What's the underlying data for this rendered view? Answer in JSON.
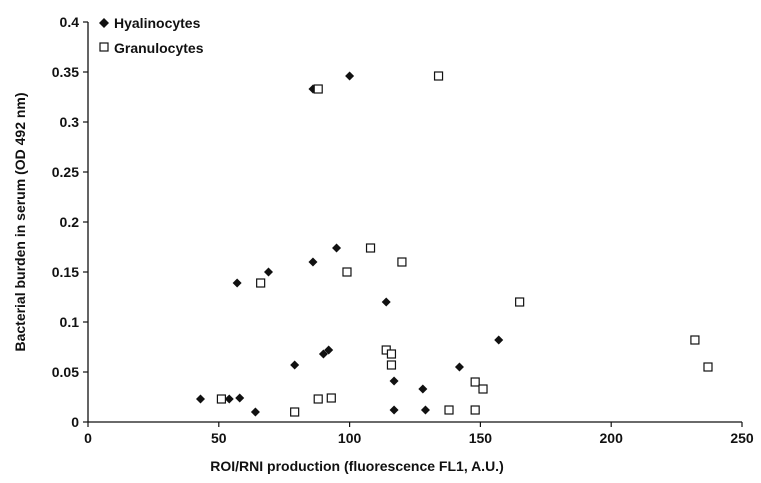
{
  "chart_data": {
    "type": "scatter",
    "title": "",
    "xlabel": "ROI/RNI production (fluorescence FL1, A.U.)",
    "ylabel": "Bacterial burden in serum (OD 492 nm)",
    "xlim": [
      0,
      250
    ],
    "ylim": [
      0,
      0.4
    ],
    "xticks": [
      0,
      50,
      100,
      150,
      200,
      250
    ],
    "yticks": [
      0,
      0.05,
      0.1,
      0.15,
      0.2,
      0.25,
      0.3,
      0.35,
      0.4
    ],
    "xtick_labels": [
      "0",
      "50",
      "100",
      "150",
      "200",
      "250"
    ],
    "ytick_labels": [
      "0",
      "0.05",
      "0.1",
      "0.15",
      "0.2",
      "0.25",
      "0.3",
      "0.35",
      "0.4"
    ],
    "grid": false,
    "legend_position": "top-left",
    "series": [
      {
        "name": "Hyalinocytes",
        "marker": "filled-diamond",
        "color": "#111111",
        "points": [
          {
            "x": 100,
            "y": 0.346
          },
          {
            "x": 86,
            "y": 0.333
          },
          {
            "x": 95,
            "y": 0.174
          },
          {
            "x": 86,
            "y": 0.16
          },
          {
            "x": 69,
            "y": 0.15
          },
          {
            "x": 57,
            "y": 0.139
          },
          {
            "x": 114,
            "y": 0.12
          },
          {
            "x": 157,
            "y": 0.082
          },
          {
            "x": 92,
            "y": 0.072
          },
          {
            "x": 90,
            "y": 0.068
          },
          {
            "x": 79,
            "y": 0.057
          },
          {
            "x": 142,
            "y": 0.055
          },
          {
            "x": 117,
            "y": 0.041
          },
          {
            "x": 128,
            "y": 0.033
          },
          {
            "x": 43,
            "y": 0.023
          },
          {
            "x": 54,
            "y": 0.023
          },
          {
            "x": 58,
            "y": 0.024
          },
          {
            "x": 64,
            "y": 0.01
          },
          {
            "x": 117,
            "y": 0.012
          },
          {
            "x": 129,
            "y": 0.012
          }
        ]
      },
      {
        "name": "Granulocytes",
        "marker": "open-square",
        "color": "#111111",
        "points": [
          {
            "x": 134,
            "y": 0.346
          },
          {
            "x": 88,
            "y": 0.333
          },
          {
            "x": 108,
            "y": 0.174
          },
          {
            "x": 120,
            "y": 0.16
          },
          {
            "x": 99,
            "y": 0.15
          },
          {
            "x": 66,
            "y": 0.139
          },
          {
            "x": 165,
            "y": 0.12
          },
          {
            "x": 232,
            "y": 0.082
          },
          {
            "x": 237,
            "y": 0.055
          },
          {
            "x": 114,
            "y": 0.072
          },
          {
            "x": 116,
            "y": 0.068
          },
          {
            "x": 116,
            "y": 0.057
          },
          {
            "x": 148,
            "y": 0.04
          },
          {
            "x": 151,
            "y": 0.033
          },
          {
            "x": 51,
            "y": 0.023
          },
          {
            "x": 88,
            "y": 0.023
          },
          {
            "x": 93,
            "y": 0.024
          },
          {
            "x": 79,
            "y": 0.01
          },
          {
            "x": 138,
            "y": 0.012
          },
          {
            "x": 148,
            "y": 0.012
          }
        ]
      }
    ]
  }
}
